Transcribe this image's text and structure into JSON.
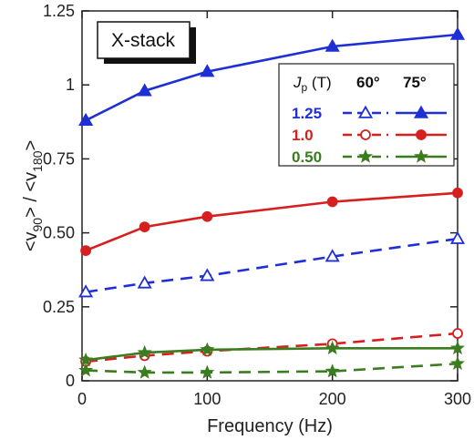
{
  "chart_data": {
    "type": "line",
    "title": "X-stack",
    "xlabel": "Frequency  (Hz)",
    "ylabel_main": "<v",
    "ylabel_sub1": "90",
    "ylabel_mid": "> / <v",
    "ylabel_sub2": "180",
    "ylabel_end": ">",
    "xlim": [
      0,
      300
    ],
    "ylim": [
      0,
      1.25
    ],
    "x_ticks": [
      0,
      100,
      200,
      300
    ],
    "y_ticks": [
      0,
      0.25,
      0.5,
      0.75,
      1,
      1.25
    ],
    "x_tick_labels": [
      "0",
      "100",
      "200",
      "300"
    ],
    "y_tick_labels": [
      "0",
      "0.25",
      "0.50",
      "0.75",
      "1",
      "1.25"
    ],
    "grid": false,
    "legend": {
      "placement": "top-right",
      "header_label": "J",
      "header_sub": "p",
      "header_unit": " (T)",
      "angle_60": "60°",
      "angle_75": "75°",
      "rows": [
        {
          "label": "1.25",
          "color": "#1f2fd6",
          "marker": "triangle"
        },
        {
          "label": "1.0",
          "color": "#d62020",
          "marker": "circle"
        },
        {
          "label": "0.50",
          "color": "#3a7d1e",
          "marker": "star"
        }
      ]
    },
    "series": [
      {
        "jp": "1.25",
        "angle": "75",
        "color": "#1f2fd6",
        "dash": false,
        "marker": "triangle",
        "filled": true,
        "x": [
          3,
          50,
          100,
          200,
          300
        ],
        "y": [
          0.88,
          0.98,
          1.045,
          1.13,
          1.17
        ]
      },
      {
        "jp": "1.25",
        "angle": "60",
        "color": "#1f2fd6",
        "dash": true,
        "marker": "triangle",
        "filled": false,
        "x": [
          3,
          50,
          100,
          200,
          300
        ],
        "y": [
          0.3,
          0.33,
          0.355,
          0.42,
          0.48
        ]
      },
      {
        "jp": "1.0",
        "angle": "75",
        "color": "#d62020",
        "dash": false,
        "marker": "circle",
        "filled": true,
        "x": [
          3,
          50,
          100,
          200,
          300
        ],
        "y": [
          0.44,
          0.52,
          0.555,
          0.605,
          0.635
        ]
      },
      {
        "jp": "1.0",
        "angle": "60",
        "color": "#d62020",
        "dash": true,
        "marker": "circle",
        "filled": false,
        "x": [
          3,
          50,
          100,
          200,
          300
        ],
        "y": [
          0.065,
          0.085,
          0.1,
          0.125,
          0.16
        ]
      },
      {
        "jp": "0.50",
        "angle": "75",
        "color": "#3a7d1e",
        "dash": false,
        "marker": "star",
        "filled": false,
        "x": [
          3,
          50,
          100,
          200,
          300
        ],
        "y": [
          0.07,
          0.095,
          0.105,
          0.11,
          0.11
        ]
      },
      {
        "jp": "0.50",
        "angle": "60",
        "color": "#3a7d1e",
        "dash": true,
        "marker": "star",
        "filled": false,
        "x": [
          3,
          50,
          100,
          200,
          300
        ],
        "y": [
          0.035,
          0.028,
          0.028,
          0.032,
          0.058
        ]
      }
    ]
  }
}
